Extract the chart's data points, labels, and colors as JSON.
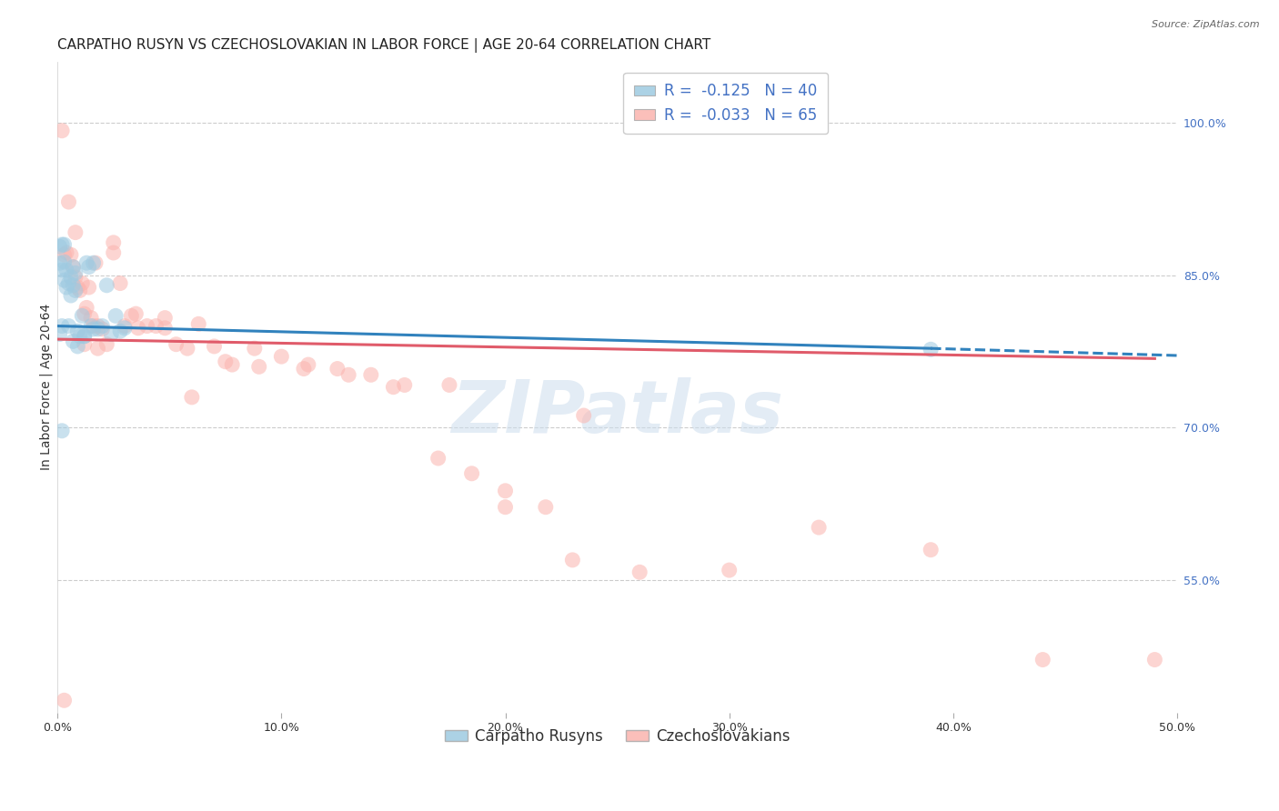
{
  "title": "CARPATHO RUSYN VS CZECHOSLOVAKIAN IN LABOR FORCE | AGE 20-64 CORRELATION CHART",
  "source_text": "Source: ZipAtlas.com",
  "ylabel": "In Labor Force | Age 20-64",
  "right_ytick_labels": [
    "100.0%",
    "85.0%",
    "70.0%",
    "55.0%"
  ],
  "right_ytick_values": [
    1.0,
    0.85,
    0.7,
    0.55
  ],
  "xlim": [
    0.0,
    0.5
  ],
  "ylim": [
    0.42,
    1.06
  ],
  "xtick_labels": [
    "0.0%",
    "10.0%",
    "20.0%",
    "30.0%",
    "40.0%",
    "50.0%"
  ],
  "xtick_values": [
    0.0,
    0.1,
    0.2,
    0.3,
    0.4,
    0.5
  ],
  "blue_scatter_x": [
    0.001,
    0.001,
    0.002,
    0.002,
    0.003,
    0.003,
    0.004,
    0.004,
    0.005,
    0.006,
    0.006,
    0.007,
    0.007,
    0.008,
    0.008,
    0.009,
    0.01,
    0.011,
    0.012,
    0.013,
    0.014,
    0.015,
    0.016,
    0.018,
    0.02,
    0.022,
    0.024,
    0.026,
    0.028,
    0.03,
    0.001,
    0.002,
    0.003,
    0.005,
    0.007,
    0.009,
    0.012,
    0.016,
    0.39,
    0.002
  ],
  "blue_scatter_y": [
    0.878,
    0.862,
    0.88,
    0.855,
    0.863,
    0.845,
    0.855,
    0.838,
    0.842,
    0.848,
    0.83,
    0.858,
    0.84,
    0.852,
    0.835,
    0.795,
    0.79,
    0.81,
    0.79,
    0.862,
    0.858,
    0.8,
    0.862,
    0.797,
    0.8,
    0.84,
    0.792,
    0.81,
    0.795,
    0.798,
    0.792,
    0.8,
    0.88,
    0.8,
    0.785,
    0.78,
    0.79,
    0.797,
    0.777,
    0.697
  ],
  "pink_scatter_x": [
    0.002,
    0.003,
    0.004,
    0.006,
    0.007,
    0.008,
    0.009,
    0.01,
    0.011,
    0.012,
    0.013,
    0.014,
    0.015,
    0.016,
    0.017,
    0.018,
    0.02,
    0.022,
    0.025,
    0.028,
    0.03,
    0.033,
    0.036,
    0.04,
    0.044,
    0.048,
    0.053,
    0.058,
    0.063,
    0.07,
    0.078,
    0.088,
    0.1,
    0.112,
    0.125,
    0.14,
    0.155,
    0.17,
    0.185,
    0.2,
    0.218,
    0.235,
    0.005,
    0.008,
    0.012,
    0.018,
    0.025,
    0.035,
    0.048,
    0.06,
    0.075,
    0.09,
    0.11,
    0.13,
    0.15,
    0.175,
    0.2,
    0.23,
    0.26,
    0.3,
    0.34,
    0.39,
    0.44,
    0.49,
    0.003
  ],
  "pink_scatter_y": [
    0.992,
    0.87,
    0.872,
    0.87,
    0.858,
    0.848,
    0.838,
    0.835,
    0.842,
    0.812,
    0.818,
    0.838,
    0.808,
    0.8,
    0.862,
    0.8,
    0.797,
    0.782,
    0.872,
    0.842,
    0.8,
    0.81,
    0.798,
    0.8,
    0.8,
    0.798,
    0.782,
    0.778,
    0.802,
    0.78,
    0.762,
    0.778,
    0.77,
    0.762,
    0.758,
    0.752,
    0.742,
    0.67,
    0.655,
    0.638,
    0.622,
    0.712,
    0.922,
    0.892,
    0.782,
    0.778,
    0.882,
    0.812,
    0.808,
    0.73,
    0.765,
    0.76,
    0.758,
    0.752,
    0.74,
    0.742,
    0.622,
    0.57,
    0.558,
    0.56,
    0.602,
    0.58,
    0.472,
    0.472,
    0.432
  ],
  "blue_color": "#9ecae1",
  "pink_color": "#fbb4ae",
  "blue_line_color": "#3182bd",
  "pink_line_color": "#e05b6a",
  "blue_R": -0.125,
  "blue_N": 40,
  "pink_R": -0.033,
  "pink_N": 65,
  "blue_line_x0": 0.0,
  "blue_line_y0": 0.8,
  "blue_line_x1": 0.39,
  "blue_line_y1": 0.778,
  "blue_line_x2": 0.5,
  "blue_line_y2": 0.771,
  "pink_line_x0": 0.0,
  "pink_line_y0": 0.787,
  "pink_line_x1": 0.49,
  "pink_line_y1": 0.768,
  "pink_line_x2": 0.5,
  "pink_line_y2": 0.767,
  "watermark": "ZIPatlas",
  "background_color": "#ffffff",
  "grid_color": "#cccccc",
  "title_fontsize": 11,
  "axis_label_fontsize": 10,
  "tick_fontsize": 9,
  "legend_fontsize": 12,
  "legend_text_color": "#4472c4",
  "right_axis_color": "#4472c4",
  "source_fontsize": 8
}
